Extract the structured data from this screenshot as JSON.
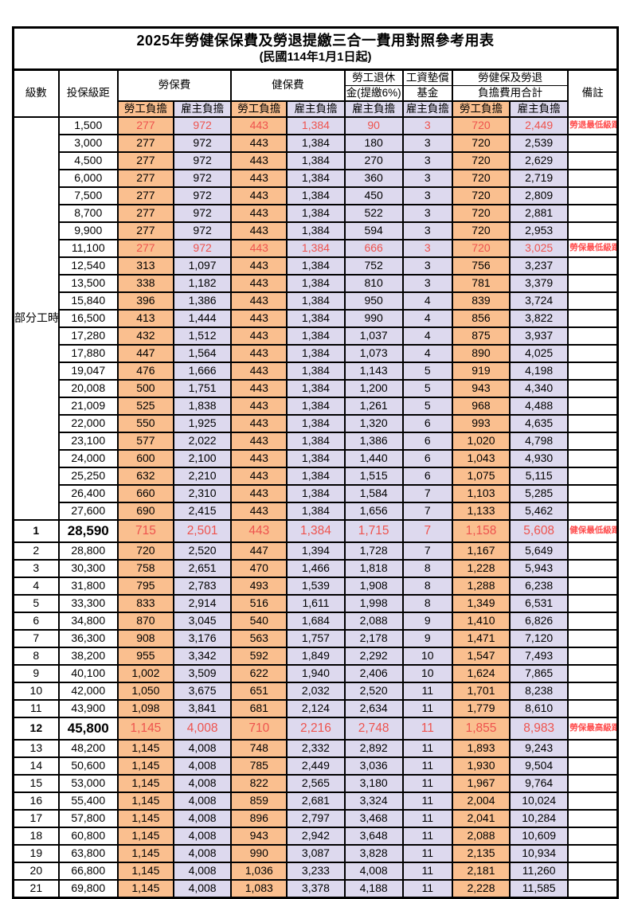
{
  "title": "2025年勞健保保費及勞退提繳三合一費用對照參考用表",
  "subtitle": "(民國114年1月1日起)",
  "colors": {
    "employee_bg": "#FABF8F",
    "employer_bg": "#DDD9EE",
    "highlight_red": "#EE534E",
    "note_red": "#FF4D4D"
  },
  "header": {
    "level": "級數",
    "bracket": "投保級距",
    "labor_ins": "勞保費",
    "health_ins": "健保費",
    "pension_line1": "勞工退休",
    "pension_line2": "金(提繳6%)",
    "wage_fund_line1": "工資墊償",
    "wage_fund_line2": "基金",
    "total_line1": "勞健保及勞退",
    "total_line2": "負擔費用合計",
    "remark": "備註",
    "employee": "勞工負擔",
    "employer": "雇主負擔"
  },
  "group": {
    "label": "部分工時",
    "rows": 23
  },
  "rows": [
    {
      "lv": "",
      "b": "1,500",
      "v": [
        "277",
        "972",
        "443",
        "1,384",
        "90",
        "3",
        "720",
        "2,449"
      ],
      "r": "勞退最低級距",
      "red": true,
      "tall": false
    },
    {
      "lv": "",
      "b": "3,000",
      "v": [
        "277",
        "972",
        "443",
        "1,384",
        "180",
        "3",
        "720",
        "2,539"
      ],
      "r": "",
      "red": false,
      "tall": false
    },
    {
      "lv": "",
      "b": "4,500",
      "v": [
        "277",
        "972",
        "443",
        "1,384",
        "270",
        "3",
        "720",
        "2,629"
      ],
      "r": "",
      "red": false,
      "tall": false
    },
    {
      "lv": "",
      "b": "6,000",
      "v": [
        "277",
        "972",
        "443",
        "1,384",
        "360",
        "3",
        "720",
        "2,719"
      ],
      "r": "",
      "red": false,
      "tall": false
    },
    {
      "lv": "",
      "b": "7,500",
      "v": [
        "277",
        "972",
        "443",
        "1,384",
        "450",
        "3",
        "720",
        "2,809"
      ],
      "r": "",
      "red": false,
      "tall": false
    },
    {
      "lv": "",
      "b": "8,700",
      "v": [
        "277",
        "972",
        "443",
        "1,384",
        "522",
        "3",
        "720",
        "2,881"
      ],
      "r": "",
      "red": false,
      "tall": false
    },
    {
      "lv": "",
      "b": "9,900",
      "v": [
        "277",
        "972",
        "443",
        "1,384",
        "594",
        "3",
        "720",
        "2,953"
      ],
      "r": "",
      "red": false,
      "tall": false
    },
    {
      "lv": "",
      "b": "11,100",
      "v": [
        "277",
        "972",
        "443",
        "1,384",
        "666",
        "3",
        "720",
        "3,025"
      ],
      "r": "勞保最低級距",
      "red": true,
      "tall": false
    },
    {
      "lv": "",
      "b": "12,540",
      "v": [
        "313",
        "1,097",
        "443",
        "1,384",
        "752",
        "3",
        "756",
        "3,237"
      ],
      "r": "",
      "red": false,
      "tall": false
    },
    {
      "lv": "",
      "b": "13,500",
      "v": [
        "338",
        "1,182",
        "443",
        "1,384",
        "810",
        "3",
        "781",
        "3,379"
      ],
      "r": "",
      "red": false,
      "tall": false
    },
    {
      "lv": "",
      "b": "15,840",
      "v": [
        "396",
        "1,386",
        "443",
        "1,384",
        "950",
        "4",
        "839",
        "3,724"
      ],
      "r": "",
      "red": false,
      "tall": false
    },
    {
      "lv": "",
      "b": "16,500",
      "v": [
        "413",
        "1,444",
        "443",
        "1,384",
        "990",
        "4",
        "856",
        "3,822"
      ],
      "r": "",
      "red": false,
      "tall": false
    },
    {
      "lv": "",
      "b": "17,280",
      "v": [
        "432",
        "1,512",
        "443",
        "1,384",
        "1,037",
        "4",
        "875",
        "3,937"
      ],
      "r": "",
      "red": false,
      "tall": false
    },
    {
      "lv": "",
      "b": "17,880",
      "v": [
        "447",
        "1,564",
        "443",
        "1,384",
        "1,073",
        "4",
        "890",
        "4,025"
      ],
      "r": "",
      "red": false,
      "tall": false
    },
    {
      "lv": "",
      "b": "19,047",
      "v": [
        "476",
        "1,666",
        "443",
        "1,384",
        "1,143",
        "5",
        "919",
        "4,198"
      ],
      "r": "",
      "red": false,
      "tall": false
    },
    {
      "lv": "",
      "b": "20,008",
      "v": [
        "500",
        "1,751",
        "443",
        "1,384",
        "1,200",
        "5",
        "943",
        "4,340"
      ],
      "r": "",
      "red": false,
      "tall": false
    },
    {
      "lv": "",
      "b": "21,009",
      "v": [
        "525",
        "1,838",
        "443",
        "1,384",
        "1,261",
        "5",
        "968",
        "4,488"
      ],
      "r": "",
      "red": false,
      "tall": false
    },
    {
      "lv": "",
      "b": "22,000",
      "v": [
        "550",
        "1,925",
        "443",
        "1,384",
        "1,320",
        "6",
        "993",
        "4,635"
      ],
      "r": "",
      "red": false,
      "tall": false
    },
    {
      "lv": "",
      "b": "23,100",
      "v": [
        "577",
        "2,022",
        "443",
        "1,384",
        "1,386",
        "6",
        "1,020",
        "4,798"
      ],
      "r": "",
      "red": false,
      "tall": false
    },
    {
      "lv": "",
      "b": "24,000",
      "v": [
        "600",
        "2,100",
        "443",
        "1,384",
        "1,440",
        "6",
        "1,043",
        "4,930"
      ],
      "r": "",
      "red": false,
      "tall": false
    },
    {
      "lv": "",
      "b": "25,250",
      "v": [
        "632",
        "2,210",
        "443",
        "1,384",
        "1,515",
        "6",
        "1,075",
        "5,115"
      ],
      "r": "",
      "red": false,
      "tall": false
    },
    {
      "lv": "",
      "b": "26,400",
      "v": [
        "660",
        "2,310",
        "443",
        "1,384",
        "1,584",
        "7",
        "1,103",
        "5,285"
      ],
      "r": "",
      "red": false,
      "tall": false
    },
    {
      "lv": "",
      "b": "27,600",
      "v": [
        "690",
        "2,415",
        "443",
        "1,384",
        "1,656",
        "7",
        "1,133",
        "5,462"
      ],
      "r": "",
      "red": false,
      "tall": false
    },
    {
      "lv": "1",
      "b": "28,590",
      "v": [
        "715",
        "2,501",
        "443",
        "1,384",
        "1,715",
        "7",
        "1,158",
        "5,608"
      ],
      "r": "健保最低級距",
      "red": true,
      "tall": true
    },
    {
      "lv": "2",
      "b": "28,800",
      "v": [
        "720",
        "2,520",
        "447",
        "1,394",
        "1,728",
        "7",
        "1,167",
        "5,649"
      ],
      "r": "",
      "red": false,
      "tall": false
    },
    {
      "lv": "3",
      "b": "30,300",
      "v": [
        "758",
        "2,651",
        "470",
        "1,466",
        "1,818",
        "8",
        "1,228",
        "5,943"
      ],
      "r": "",
      "red": false,
      "tall": false
    },
    {
      "lv": "4",
      "b": "31,800",
      "v": [
        "795",
        "2,783",
        "493",
        "1,539",
        "1,908",
        "8",
        "1,288",
        "6,238"
      ],
      "r": "",
      "red": false,
      "tall": false
    },
    {
      "lv": "5",
      "b": "33,300",
      "v": [
        "833",
        "2,914",
        "516",
        "1,611",
        "1,998",
        "8",
        "1,349",
        "6,531"
      ],
      "r": "",
      "red": false,
      "tall": false
    },
    {
      "lv": "6",
      "b": "34,800",
      "v": [
        "870",
        "3,045",
        "540",
        "1,684",
        "2,088",
        "9",
        "1,410",
        "6,826"
      ],
      "r": "",
      "red": false,
      "tall": false
    },
    {
      "lv": "7",
      "b": "36,300",
      "v": [
        "908",
        "3,176",
        "563",
        "1,757",
        "2,178",
        "9",
        "1,471",
        "7,120"
      ],
      "r": "",
      "red": false,
      "tall": false
    },
    {
      "lv": "8",
      "b": "38,200",
      "v": [
        "955",
        "3,342",
        "592",
        "1,849",
        "2,292",
        "10",
        "1,547",
        "7,493"
      ],
      "r": "",
      "red": false,
      "tall": false
    },
    {
      "lv": "9",
      "b": "40,100",
      "v": [
        "1,002",
        "3,509",
        "622",
        "1,940",
        "2,406",
        "10",
        "1,624",
        "7,865"
      ],
      "r": "",
      "red": false,
      "tall": false
    },
    {
      "lv": "10",
      "b": "42,000",
      "v": [
        "1,050",
        "3,675",
        "651",
        "2,032",
        "2,520",
        "11",
        "1,701",
        "8,238"
      ],
      "r": "",
      "red": false,
      "tall": false
    },
    {
      "lv": "11",
      "b": "43,900",
      "v": [
        "1,098",
        "3,841",
        "681",
        "2,124",
        "2,634",
        "11",
        "1,779",
        "8,610"
      ],
      "r": "",
      "red": false,
      "tall": false
    },
    {
      "lv": "12",
      "b": "45,800",
      "v": [
        "1,145",
        "4,008",
        "710",
        "2,216",
        "2,748",
        "11",
        "1,855",
        "8,983"
      ],
      "r": "勞保最高級距",
      "red": true,
      "tall": true
    },
    {
      "lv": "13",
      "b": "48,200",
      "v": [
        "1,145",
        "4,008",
        "748",
        "2,332",
        "2,892",
        "11",
        "1,893",
        "9,243"
      ],
      "r": "",
      "red": false,
      "tall": false
    },
    {
      "lv": "14",
      "b": "50,600",
      "v": [
        "1,145",
        "4,008",
        "785",
        "2,449",
        "3,036",
        "11",
        "1,930",
        "9,504"
      ],
      "r": "",
      "red": false,
      "tall": false
    },
    {
      "lv": "15",
      "b": "53,000",
      "v": [
        "1,145",
        "4,008",
        "822",
        "2,565",
        "3,180",
        "11",
        "1,967",
        "9,764"
      ],
      "r": "",
      "red": false,
      "tall": false
    },
    {
      "lv": "16",
      "b": "55,400",
      "v": [
        "1,145",
        "4,008",
        "859",
        "2,681",
        "3,324",
        "11",
        "2,004",
        "10,024"
      ],
      "r": "",
      "red": false,
      "tall": false
    },
    {
      "lv": "17",
      "b": "57,800",
      "v": [
        "1,145",
        "4,008",
        "896",
        "2,797",
        "3,468",
        "11",
        "2,041",
        "10,284"
      ],
      "r": "",
      "red": false,
      "tall": false
    },
    {
      "lv": "18",
      "b": "60,800",
      "v": [
        "1,145",
        "4,008",
        "943",
        "2,942",
        "3,648",
        "11",
        "2,088",
        "10,609"
      ],
      "r": "",
      "red": false,
      "tall": false
    },
    {
      "lv": "19",
      "b": "63,800",
      "v": [
        "1,145",
        "4,008",
        "990",
        "3,087",
        "3,828",
        "11",
        "2,135",
        "10,934"
      ],
      "r": "",
      "red": false,
      "tall": false
    },
    {
      "lv": "20",
      "b": "66,800",
      "v": [
        "1,145",
        "4,008",
        "1,036",
        "3,233",
        "4,008",
        "11",
        "2,181",
        "11,260"
      ],
      "r": "",
      "red": false,
      "tall": false
    },
    {
      "lv": "21",
      "b": "69,800",
      "v": [
        "1,145",
        "4,008",
        "1,083",
        "3,378",
        "4,188",
        "11",
        "2,228",
        "11,585"
      ],
      "r": "",
      "red": false,
      "tall": false
    }
  ]
}
